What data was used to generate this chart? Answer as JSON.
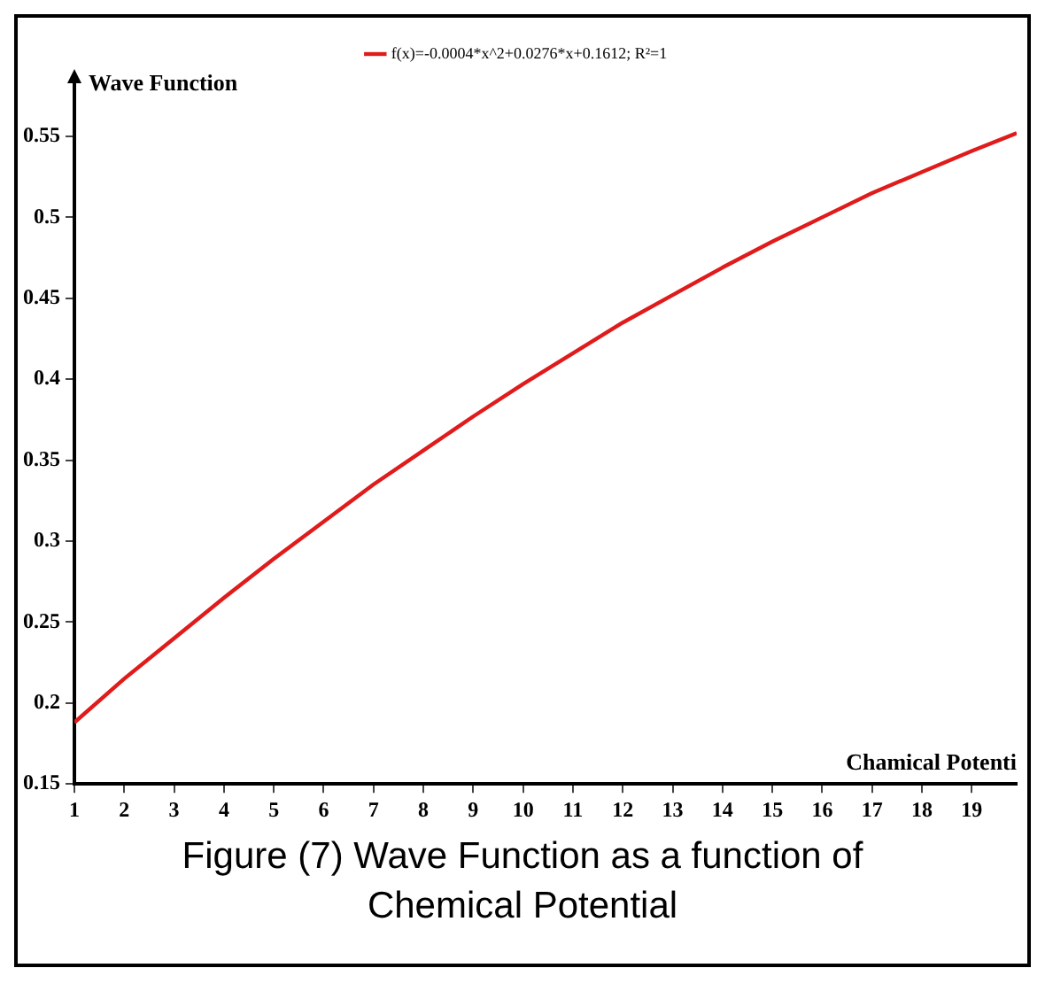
{
  "chart_data": {
    "type": "line",
    "xlabel": "Chamical Potenti",
    "ylabel": "Wave Function",
    "annotations": [
      "Figure (7) Wave Function as a function of Chemical Potential"
    ],
    "x": [
      1,
      2,
      3,
      4,
      5,
      6,
      7,
      8,
      9,
      10,
      11,
      12,
      13,
      14,
      15,
      16,
      17,
      18,
      19,
      19.9
    ],
    "series": [
      {
        "name": "f(x)=-0.0004*x^2+0.0276*x+0.1612; R²=1",
        "color": "#e01b1b",
        "values": [
          0.188,
          0.215,
          0.24,
          0.265,
          0.289,
          0.312,
          0.335,
          0.356,
          0.377,
          0.397,
          0.416,
          0.435,
          0.452,
          0.469,
          0.485,
          0.5,
          0.515,
          0.528,
          0.541,
          0.552
        ]
      }
    ],
    "xlim": [
      1,
      19.9
    ],
    "xticks": [
      1,
      2,
      3,
      4,
      5,
      6,
      7,
      8,
      9,
      10,
      11,
      12,
      13,
      14,
      15,
      16,
      17,
      18,
      19
    ],
    "ylim": [
      0.15,
      0.585
    ],
    "yticks": [
      0.15,
      0.2,
      0.25,
      0.3,
      0.35,
      0.4,
      0.45,
      0.5,
      0.55
    ],
    "grid": false,
    "legend": "top",
    "marker": "none",
    "line_style": "solid"
  }
}
